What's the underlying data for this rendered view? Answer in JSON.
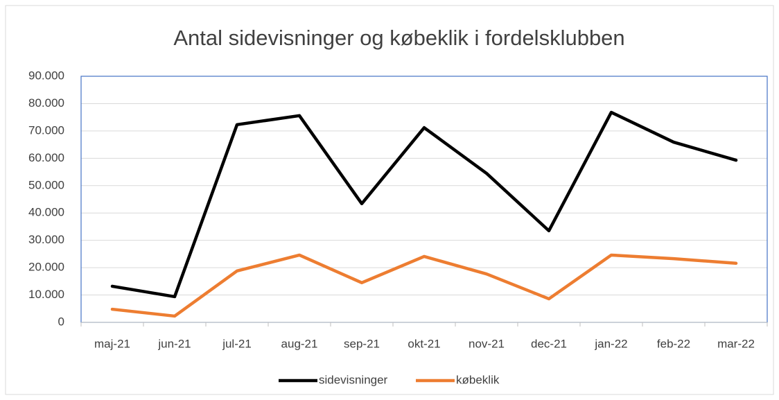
{
  "chart_data": {
    "type": "line",
    "title": "Antal sidevisninger og købeklik i fordelsklubben",
    "categories": [
      "maj-21",
      "jun-21",
      "jul-21",
      "aug-21",
      "sep-21",
      "okt-21",
      "nov-21",
      "dec-21",
      "jan-22",
      "feb-22",
      "mar-22"
    ],
    "series": [
      {
        "name": "sidevisninger",
        "color": "#000000",
        "values": [
          13200,
          9400,
          72300,
          75600,
          43400,
          71200,
          54500,
          33500,
          76800,
          65900,
          59300
        ]
      },
      {
        "name": "købeklik",
        "color": "#ed7d31",
        "values": [
          4800,
          2300,
          18800,
          24600,
          14500,
          24100,
          17700,
          8600,
          24600,
          23300,
          21600
        ]
      }
    ],
    "ylim": [
      0,
      90000
    ],
    "yticks": [
      0,
      {
        "value": 10000,
        "label": "10.000"
      },
      {
        "value": 20000,
        "label": "20.000"
      },
      {
        "value": 30000,
        "label": "30.000"
      },
      {
        "value": 40000,
        "label": "40.000"
      },
      {
        "value": 50000,
        "label": "50.000"
      },
      {
        "value": 60000,
        "label": "60.000"
      },
      {
        "value": 70000,
        "label": "70.000"
      },
      {
        "value": 80000,
        "label": "80.000"
      },
      {
        "value": 90000,
        "label": "90.000"
      }
    ],
    "grid": true,
    "legend": "bottom"
  }
}
